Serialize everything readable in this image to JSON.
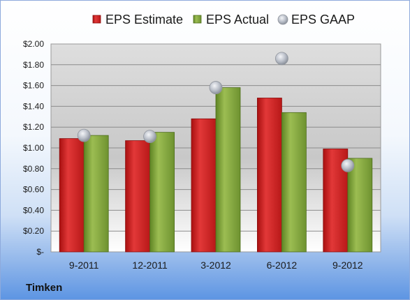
{
  "company": "Timken",
  "colors": {
    "estimate": "#d42a2a",
    "actual": "#86aa3c",
    "gaap": "#b8bec8"
  },
  "chart_data": {
    "type": "bar",
    "categories": [
      "9-2011",
      "12-2011",
      "3-2012",
      "6-2012",
      "9-2012"
    ],
    "series": [
      {
        "name": "EPS Estimate",
        "type": "bar",
        "values": [
          1.09,
          1.07,
          1.28,
          1.48,
          0.99
        ]
      },
      {
        "name": "EPS Actual",
        "type": "bar",
        "values": [
          1.12,
          1.15,
          1.58,
          1.34,
          0.9
        ]
      },
      {
        "name": "EPS GAAP",
        "type": "scatter",
        "values": [
          1.12,
          1.11,
          1.58,
          1.86,
          0.83
        ]
      }
    ],
    "y_ticks": [
      "$-",
      "$0.20",
      "$0.40",
      "$0.60",
      "$0.80",
      "$1.00",
      "$1.20",
      "$1.40",
      "$1.60",
      "$1.80",
      "$2.00"
    ],
    "ylim": [
      0,
      2.0
    ],
    "title": "",
    "xlabel": "",
    "ylabel": "",
    "legend": "top",
    "grid": true
  }
}
